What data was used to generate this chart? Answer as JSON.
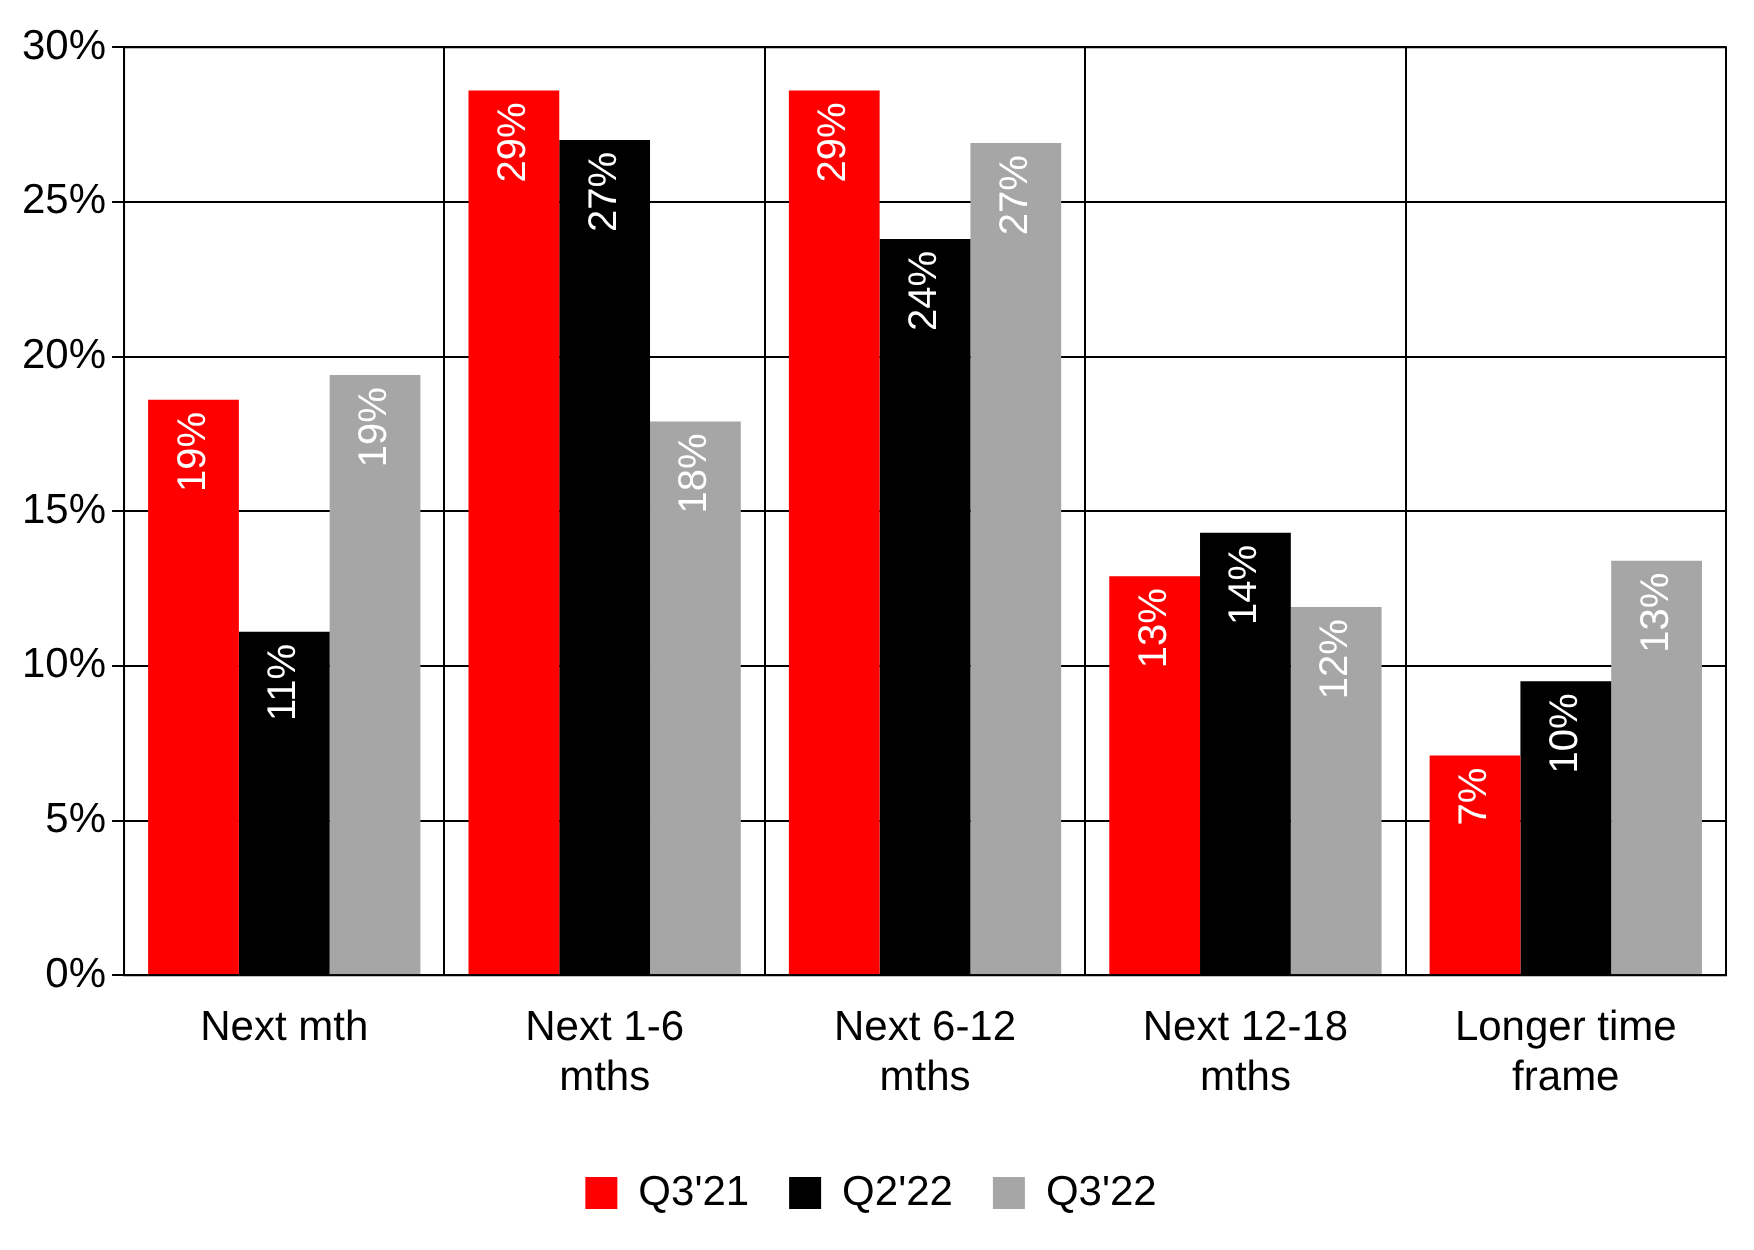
{
  "chart_data": {
    "type": "bar",
    "categories": [
      "Next mth",
      "Next 1-6 mths",
      "Next 6-12 mths",
      "Next 12-18 mths",
      "Longer time frame"
    ],
    "series": [
      {
        "name": "Q3'21",
        "color": "#ff0000",
        "values": [
          18.6,
          28.6,
          28.6,
          12.9,
          7.1
        ],
        "value_labels": [
          "19%",
          "29%",
          "29%",
          "13%",
          "7%"
        ]
      },
      {
        "name": "Q2'22",
        "color": "#000000",
        "values": [
          11.1,
          27.0,
          23.8,
          14.3,
          9.5
        ],
        "value_labels": [
          "11%",
          "27%",
          "24%",
          "14%",
          "10%"
        ]
      },
      {
        "name": "Q3'22",
        "color": "#a6a6a6",
        "values": [
          19.4,
          17.9,
          26.9,
          11.9,
          13.4
        ],
        "value_labels": [
          "19%",
          "18%",
          "27%",
          "12%",
          "13%"
        ]
      }
    ],
    "ylim": [
      0,
      30
    ],
    "yticks": [
      {
        "value": 0,
        "label": "0%"
      },
      {
        "value": 5,
        "label": "5%"
      },
      {
        "value": 10,
        "label": "10%"
      },
      {
        "value": 15,
        "label": "15%"
      },
      {
        "value": 20,
        "label": "20%"
      },
      {
        "value": 25,
        "label": "25%"
      },
      {
        "value": 30,
        "label": "30%"
      }
    ],
    "grid": true,
    "legend": "bottom"
  }
}
